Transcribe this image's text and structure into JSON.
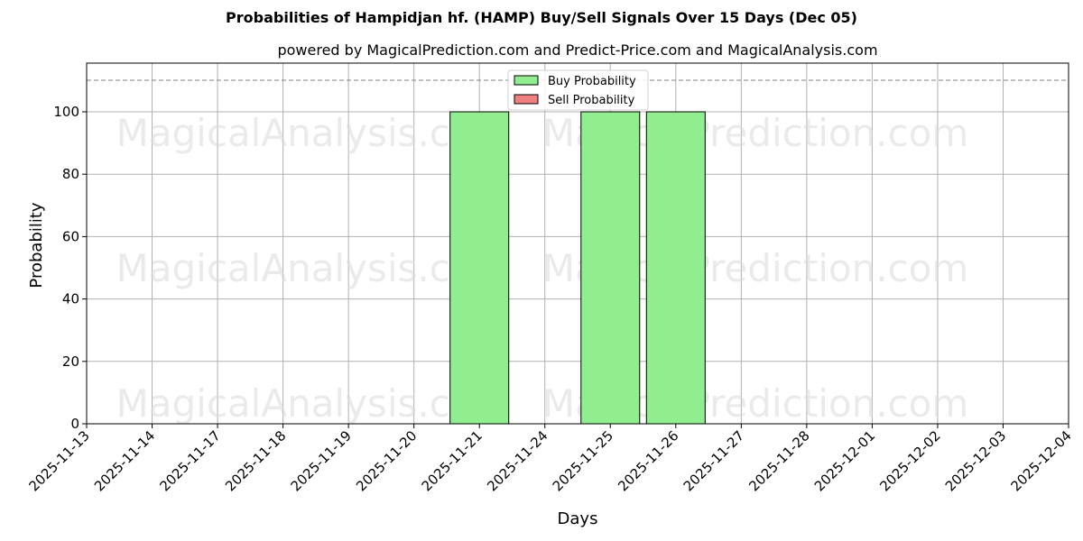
{
  "header": {
    "title": "Probabilities of Hampidjan hf. (HAMP) Buy/Sell Signals Over 15 Days (Dec 05)",
    "subtitle": "powered by MagicalPrediction.com and Predict-Price.com and MagicalAnalysis.com"
  },
  "legend": {
    "buy_label": "Buy Probability",
    "sell_label": "Sell Probability"
  },
  "watermarks": {
    "left": "MagicalAnalysis.com",
    "right": "MagicalPrediction.com"
  },
  "colors": {
    "buy": "#90ee90",
    "sell": "#f08080",
    "grid": "#b0b0b0",
    "threshold": "#808080"
  },
  "chart_data": {
    "type": "bar",
    "title": "Probabilities of Hampidjan hf. (HAMP) Buy/Sell Signals Over 15 Days (Dec 05)",
    "subtitle": "powered by MagicalPrediction.com and Predict-Price.com and MagicalAnalysis.com",
    "xlabel": "Days",
    "ylabel": "Probability",
    "ylim": [
      0,
      115
    ],
    "yticks": [
      0,
      20,
      40,
      60,
      80,
      100
    ],
    "grid": true,
    "legend_position": "upper center",
    "threshold_line": 110,
    "categories": [
      "2025-11-13",
      "2025-11-14",
      "2025-11-17",
      "2025-11-18",
      "2025-11-19",
      "2025-11-20",
      "2025-11-21",
      "2025-11-24",
      "2025-11-25",
      "2025-11-26",
      "2025-11-27",
      "2025-11-28",
      "2025-12-01",
      "2025-12-02",
      "2025-12-03",
      "2025-12-04"
    ],
    "series": [
      {
        "name": "Buy Probability",
        "color": "#90ee90",
        "values": [
          0,
          0,
          0,
          0,
          0,
          0,
          100,
          0,
          100,
          100,
          0,
          0,
          0,
          0,
          0,
          0
        ]
      },
      {
        "name": "Sell Probability",
        "color": "#f08080",
        "values": [
          0,
          0,
          0,
          0,
          0,
          0,
          0,
          0,
          0,
          0,
          0,
          0,
          0,
          0,
          0,
          0
        ]
      }
    ]
  }
}
